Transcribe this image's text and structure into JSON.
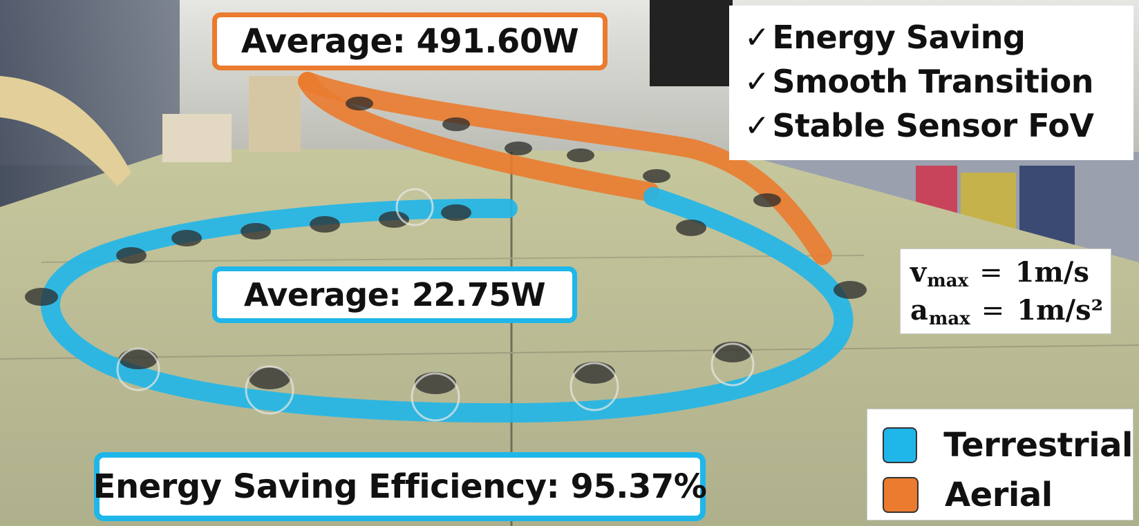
{
  "colors": {
    "terrestrial": "#1fb6ea",
    "aerial": "#ea7b2f"
  },
  "annotations": {
    "aerial_average": "Average: 491.60W",
    "terrestrial_average": "Average: 22.75W",
    "efficiency": "Energy Saving Efficiency: 95.37%"
  },
  "features": [
    {
      "icon": "check-icon",
      "check": "✓",
      "label": "Energy Saving"
    },
    {
      "icon": "check-icon",
      "check": "✓",
      "label": "Smooth Transition"
    },
    {
      "icon": "check-icon",
      "check": "✓",
      "label": "Stable Sensor FoV"
    }
  ],
  "limits": [
    {
      "symbol": "v",
      "subscript": "max",
      "eq": "=",
      "value": "1m/s"
    },
    {
      "symbol": "a",
      "subscript": "max",
      "eq": "=",
      "value": "1m/s²"
    }
  ],
  "legend": [
    {
      "label": "Terrestrial",
      "color": "#1fb6ea"
    },
    {
      "label": "Aerial",
      "color": "#ea7b2f"
    }
  ]
}
